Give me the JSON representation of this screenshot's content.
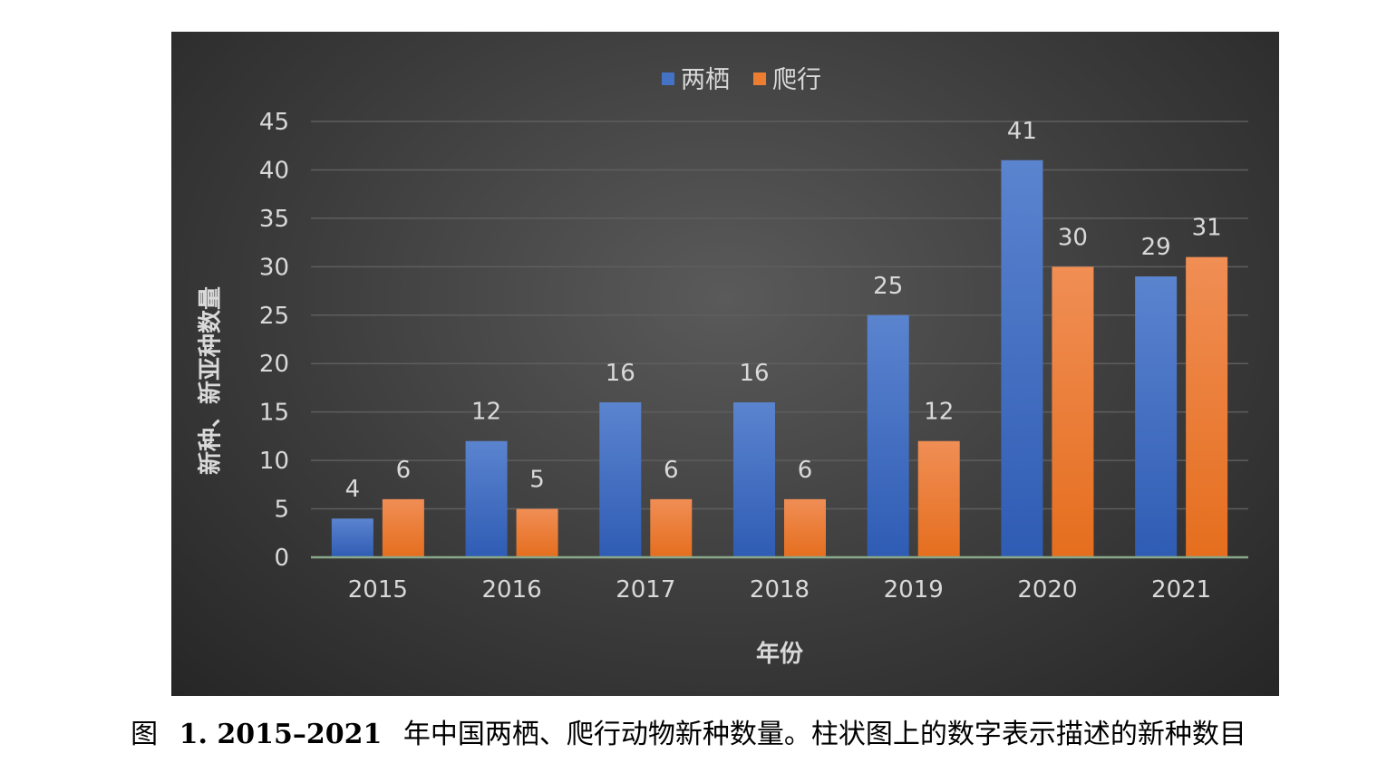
{
  "chart_data": {
    "type": "bar",
    "categories": [
      "2015",
      "2016",
      "2017",
      "2018",
      "2019",
      "2020",
      "2021"
    ],
    "series": [
      {
        "name": "两栖",
        "values": [
          4,
          12,
          16,
          16,
          25,
          41,
          29
        ],
        "color": "#4472c4"
      },
      {
        "name": "爬行",
        "values": [
          6,
          5,
          6,
          6,
          12,
          30,
          31
        ],
        "color": "#ed7d31"
      }
    ],
    "xlabel": "年份",
    "ylabel": "新种、新亚种数量",
    "ylim": [
      0,
      45
    ],
    "yticks": [
      0,
      5,
      10,
      15,
      20,
      25,
      30,
      35,
      40,
      45
    ],
    "legend_position": "top-center",
    "grid": true
  },
  "caption": {
    "prefix": "图",
    "number": "1. 2015–2021",
    "text": "年中国两栖、爬行动物新种数量。柱状图上的数字表示描述的新种数目"
  }
}
